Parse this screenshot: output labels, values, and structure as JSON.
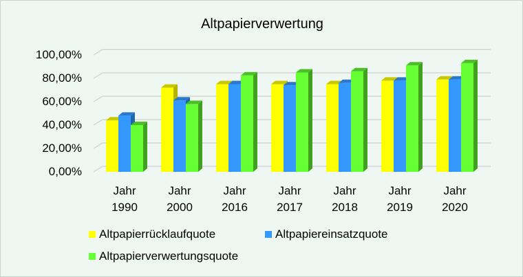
{
  "chart_data": {
    "type": "bar",
    "title": "Altpapierverwertung",
    "categories": [
      [
        "Jahr",
        "1990"
      ],
      [
        "Jahr",
        "2000"
      ],
      [
        "Jahr",
        "2016"
      ],
      [
        "Jahr",
        "2017"
      ],
      [
        "Jahr",
        "2018"
      ],
      [
        "Jahr",
        "2019"
      ],
      [
        "Jahr",
        "2020"
      ]
    ],
    "yticks": [
      "0,00%",
      "20,00%",
      "40,00%",
      "60,00%",
      "80,00%",
      "100,00%"
    ],
    "ylim": [
      0,
      100
    ],
    "grid": true,
    "legend_position": "bottom",
    "series": [
      {
        "name": "Altpapierrücklaufquote",
        "color": "#ffff00",
        "values": [
          44,
          72,
          75,
          75,
          75,
          78,
          79
        ]
      },
      {
        "name": "Altpapiereinsatzquote",
        "color": "#3399ff",
        "values": [
          48,
          61,
          75,
          74,
          76,
          78,
          79
        ]
      },
      {
        "name": "Altpapierverwertungsquote",
        "color": "#66ff33",
        "values": [
          40,
          58,
          82.5,
          85,
          86,
          91,
          93
        ]
      }
    ]
  }
}
